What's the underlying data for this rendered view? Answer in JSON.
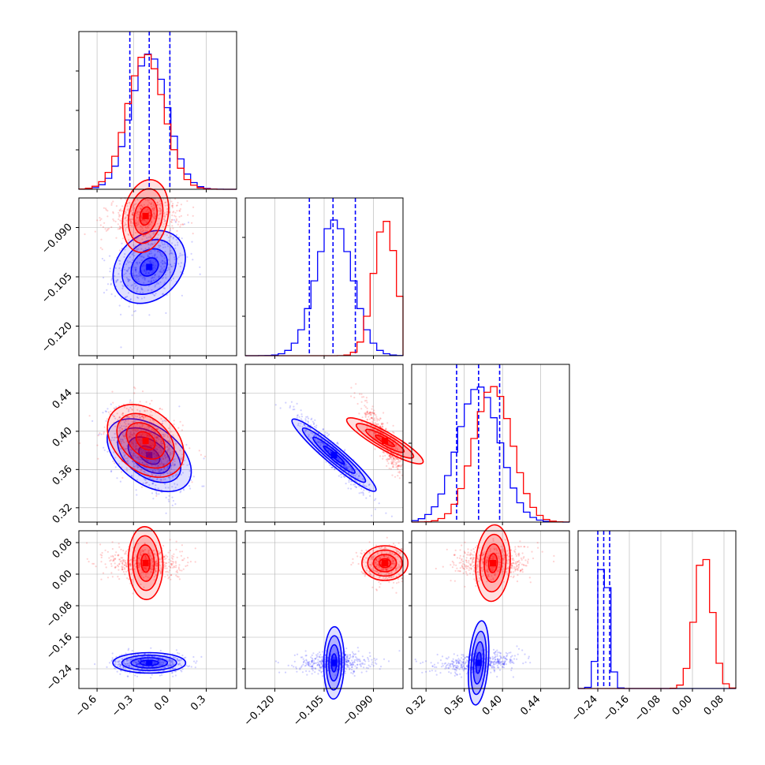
{
  "chart_data": {
    "type": "corner",
    "title": "",
    "grid": true,
    "colors": {
      "series_a": "#0000ff",
      "series_b": "#ff0000",
      "grid": "#b0b0b0",
      "frame": "#000000"
    },
    "parameters": [
      {
        "label": "",
        "range": [
          -0.75,
          0.55
        ],
        "ticks": [
          -0.6,
          -0.3,
          0.0,
          0.3
        ],
        "tick_labels": [
          "−0.6",
          "−0.3",
          "0.0",
          "0.3"
        ]
      },
      {
        "label": "",
        "range": [
          -0.129,
          -0.081
        ],
        "ticks": [
          -0.12,
          -0.105,
          -0.09
        ],
        "tick_labels": [
          "−0.120",
          "−0.105",
          "−0.090"
        ]
      },
      {
        "label": "",
        "range": [
          0.305,
          0.47
        ],
        "ticks": [
          0.32,
          0.36,
          0.4,
          0.44
        ],
        "tick_labels": [
          "0.32",
          "0.36",
          "0.40",
          "0.44"
        ]
      },
      {
        "label": "",
        "range": [
          -0.29,
          0.11
        ],
        "ticks": [
          -0.24,
          -0.16,
          -0.08,
          0.0,
          0.08
        ],
        "tick_labels": [
          "−0.24",
          "−0.16",
          "−0.08",
          "0.00",
          "0.08"
        ]
      }
    ],
    "series": [
      {
        "color": "#0000ff",
        "means": [
          -0.17,
          -0.102,
          0.375,
          -0.225
        ],
        "stds": [
          0.15,
          0.0055,
          0.022,
          0.013
        ],
        "correlations": [
          [
            0,
            1,
            0.25
          ],
          [
            0,
            2,
            -0.45
          ],
          [
            1,
            2,
            -0.95
          ],
          [
            0,
            3,
            0.0
          ],
          [
            1,
            3,
            0.05
          ],
          [
            2,
            3,
            0.3
          ]
        ],
        "quantiles": [
          [
            -0.33,
            -0.17,
            0.0
          ],
          [
            -0.1095,
            -0.1023,
            -0.0955
          ],
          [
            0.352,
            0.375,
            0.397
          ],
          [
            -0.24,
            -0.225,
            -0.21
          ]
        ]
      },
      {
        "color": "#ff0000",
        "means": [
          -0.2,
          -0.0865,
          0.39,
          0.028
        ],
        "stds": [
          0.15,
          0.0035,
          0.02,
          0.022
        ],
        "correlations": [
          [
            0,
            1,
            0.2
          ],
          [
            0,
            2,
            -0.35
          ],
          [
            1,
            2,
            -0.9
          ],
          [
            0,
            3,
            -0.05
          ],
          [
            1,
            3,
            0.0
          ],
          [
            2,
            3,
            0.1
          ]
        ]
      }
    ]
  }
}
